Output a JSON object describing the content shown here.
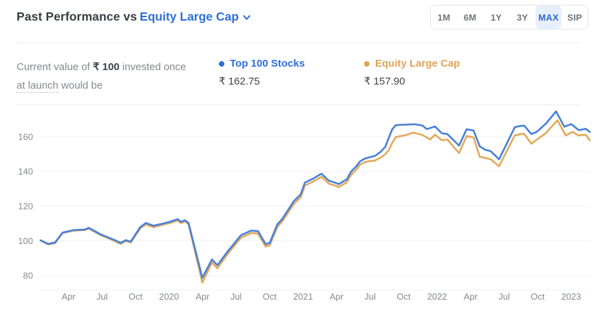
{
  "header": {
    "title_prefix": "Past Performance vs",
    "benchmark_selector": "Equity Large Cap",
    "active_range": "MAX",
    "range_options": [
      {
        "label": "1M"
      },
      {
        "label": "6M"
      },
      {
        "label": "1Y"
      },
      {
        "label": "3Y"
      },
      {
        "label": "MAX"
      },
      {
        "label": "SIP"
      }
    ]
  },
  "summary": {
    "text_before_amount": "Current value of",
    "amount": "₹ 100",
    "text_after_amount": "invested once",
    "underlined_term": "at launch",
    "text_end": "would be"
  },
  "legend": [
    {
      "name": "Top 100 Stocks",
      "value": "₹ 162.75",
      "color": "#2e6fd8"
    },
    {
      "name": "Equity Large Cap",
      "value": "₹ 157.90",
      "color": "#dfa458"
    }
  ],
  "colors": {
    "line_blue": "#4a82d8",
    "line_orange": "#e3a95c",
    "grid": "#eef0f3",
    "axis_text": "#86898f",
    "accent_blue": "#2e6fd8",
    "accent_orange": "#dfa458"
  },
  "chart_data": {
    "type": "line",
    "title": "Past Performance vs Equity Large Cap (MAX range, value of ₹100 invested at launch)",
    "x_unit": "months since launch (~mid-Jan 2019 to ~Feb 2023)",
    "ylabel": "",
    "ylim": [
      72,
      178
    ],
    "yticks": [
      80,
      100,
      120,
      140,
      160
    ],
    "grid": true,
    "legend_position": "top",
    "xticks": [
      {
        "t": 2.5,
        "label": "Apr"
      },
      {
        "t": 5.5,
        "label": "Jul"
      },
      {
        "t": 8.5,
        "label": "Oct"
      },
      {
        "t": 11.5,
        "label": "2020"
      },
      {
        "t": 14.5,
        "label": "Apr"
      },
      {
        "t": 17.5,
        "label": "Jul"
      },
      {
        "t": 20.5,
        "label": "Oct"
      },
      {
        "t": 23.5,
        "label": "2021"
      },
      {
        "t": 26.5,
        "label": "Apr"
      },
      {
        "t": 29.5,
        "label": "Jul"
      },
      {
        "t": 32.5,
        "label": "Oct"
      },
      {
        "t": 35.5,
        "label": "2022"
      },
      {
        "t": 38.5,
        "label": "Apr"
      },
      {
        "t": 41.5,
        "label": "Jul"
      },
      {
        "t": 44.5,
        "label": "Oct"
      },
      {
        "t": 47.5,
        "label": "2023"
      }
    ],
    "series": [
      {
        "name": "Equity Large Cap",
        "final_value": 157.9,
        "points": [
          [
            0,
            100.2
          ],
          [
            0.68,
            98.0
          ],
          [
            1.29,
            98.7
          ],
          [
            1.97,
            104.5
          ],
          [
            2.96,
            105.9
          ],
          [
            3.94,
            106.2
          ],
          [
            4.31,
            107.1
          ],
          [
            5.42,
            103.2
          ],
          [
            6.65,
            99.9
          ],
          [
            7.15,
            98.3
          ],
          [
            7.64,
            99.9
          ],
          [
            8.07,
            99.0
          ],
          [
            8.93,
            107.2
          ],
          [
            9.43,
            109.5
          ],
          [
            10.1,
            107.9
          ],
          [
            10.97,
            109.3
          ],
          [
            11.58,
            110.3
          ],
          [
            12.26,
            111.7
          ],
          [
            12.57,
            110.3
          ],
          [
            12.94,
            111.2
          ],
          [
            13.25,
            109.5
          ],
          [
            14.48,
            76.0
          ],
          [
            15.34,
            87.5
          ],
          [
            15.83,
            84.2
          ],
          [
            16.7,
            92.0
          ],
          [
            17.07,
            95.0
          ],
          [
            17.93,
            101.8
          ],
          [
            18.85,
            104.5
          ],
          [
            19.47,
            104.2
          ],
          [
            20.15,
            96.7
          ],
          [
            20.52,
            97.5
          ],
          [
            21.2,
            108.2
          ],
          [
            21.63,
            111.2
          ],
          [
            22.67,
            121.3
          ],
          [
            23.29,
            125.2
          ],
          [
            23.66,
            131.9
          ],
          [
            24.4,
            134.2
          ],
          [
            25.14,
            136.9
          ],
          [
            25.82,
            132.9
          ],
          [
            26.43,
            131.7
          ],
          [
            26.68,
            131.0
          ],
          [
            27.42,
            133.8
          ],
          [
            27.79,
            138.0
          ],
          [
            28.28,
            141.2
          ],
          [
            28.59,
            143.9
          ],
          [
            29.02,
            145.4
          ],
          [
            29.45,
            146.0
          ],
          [
            29.94,
            146.3
          ],
          [
            30.44,
            148.0
          ],
          [
            30.87,
            150.0
          ],
          [
            31.18,
            152.5
          ],
          [
            31.48,
            156.5
          ],
          [
            31.79,
            159.8
          ],
          [
            32.72,
            161.0
          ],
          [
            33.36,
            162.4
          ],
          [
            34.2,
            161.0
          ],
          [
            34.88,
            158.4
          ],
          [
            35.31,
            161.2
          ],
          [
            35.92,
            158.0
          ],
          [
            36.41,
            158.4
          ],
          [
            37.46,
            150.6
          ],
          [
            38.14,
            160.4
          ],
          [
            38.76,
            159.6
          ],
          [
            39.31,
            148.5
          ],
          [
            39.8,
            147.8
          ],
          [
            40.3,
            147.0
          ],
          [
            41.04,
            143.0
          ],
          [
            42.45,
            160.8
          ],
          [
            43.01,
            161.6
          ],
          [
            43.31,
            161.6
          ],
          [
            43.93,
            156.0
          ],
          [
            44.42,
            158.3
          ],
          [
            45.22,
            162.0
          ],
          [
            46.27,
            169.5
          ],
          [
            47.01,
            160.8
          ],
          [
            47.62,
            162.8
          ],
          [
            48.12,
            160.8
          ],
          [
            48.8,
            161.2
          ],
          [
            49.17,
            157.9
          ]
        ]
      },
      {
        "name": "Top 100 Stocks",
        "final_value": 162.75,
        "points": [
          [
            0,
            100.3
          ],
          [
            0.68,
            98.2
          ],
          [
            1.29,
            99.0
          ],
          [
            1.97,
            104.8
          ],
          [
            2.96,
            106.2
          ],
          [
            3.94,
            106.5
          ],
          [
            4.31,
            107.5
          ],
          [
            5.42,
            103.6
          ],
          [
            6.65,
            100.4
          ],
          [
            7.15,
            98.8
          ],
          [
            7.64,
            100.4
          ],
          [
            8.07,
            99.6
          ],
          [
            8.93,
            108.0
          ],
          [
            9.43,
            110.3
          ],
          [
            10.1,
            108.7
          ],
          [
            10.97,
            110.0
          ],
          [
            11.58,
            111.0
          ],
          [
            12.26,
            112.5
          ],
          [
            12.57,
            111.0
          ],
          [
            12.94,
            111.9
          ],
          [
            13.25,
            110.2
          ],
          [
            14.48,
            78.7
          ],
          [
            15.34,
            89.3
          ],
          [
            15.83,
            86.0
          ],
          [
            16.7,
            93.5
          ],
          [
            17.07,
            96.4
          ],
          [
            17.93,
            103.2
          ],
          [
            18.85,
            105.9
          ],
          [
            19.47,
            105.6
          ],
          [
            20.15,
            98.1
          ],
          [
            20.52,
            98.9
          ],
          [
            21.2,
            109.6
          ],
          [
            21.63,
            112.6
          ],
          [
            22.67,
            122.9
          ],
          [
            23.29,
            126.8
          ],
          [
            23.66,
            133.6
          ],
          [
            24.4,
            135.9
          ],
          [
            25.14,
            138.7
          ],
          [
            25.82,
            134.6
          ],
          [
            26.43,
            133.4
          ],
          [
            26.68,
            132.7
          ],
          [
            27.42,
            135.5
          ],
          [
            27.79,
            139.9
          ],
          [
            28.28,
            143.1
          ],
          [
            28.59,
            145.8
          ],
          [
            29.02,
            147.4
          ],
          [
            29.45,
            148.2
          ],
          [
            29.94,
            149.0
          ],
          [
            30.44,
            151.3
          ],
          [
            30.87,
            154.3
          ],
          [
            31.18,
            159.6
          ],
          [
            31.48,
            164.3
          ],
          [
            31.79,
            166.7
          ],
          [
            32.72,
            167.0
          ],
          [
            33.52,
            167.2
          ],
          [
            34.2,
            166.4
          ],
          [
            34.57,
            164.4
          ],
          [
            35.31,
            165.9
          ],
          [
            35.92,
            162.0
          ],
          [
            36.41,
            161.6
          ],
          [
            37.46,
            154.9
          ],
          [
            38.14,
            164.3
          ],
          [
            38.76,
            163.6
          ],
          [
            39.31,
            154.5
          ],
          [
            39.8,
            152.5
          ],
          [
            40.3,
            151.7
          ],
          [
            41.04,
            147.0
          ],
          [
            42.45,
            165.5
          ],
          [
            43.01,
            166.3
          ],
          [
            43.31,
            166.3
          ],
          [
            43.93,
            161.6
          ],
          [
            44.42,
            162.8
          ],
          [
            45.22,
            167.5
          ],
          [
            46.15,
            174.6
          ],
          [
            46.89,
            165.8
          ],
          [
            47.5,
            167.3
          ],
          [
            48.18,
            163.8
          ],
          [
            48.8,
            164.6
          ],
          [
            49.17,
            162.75
          ]
        ]
      }
    ]
  }
}
